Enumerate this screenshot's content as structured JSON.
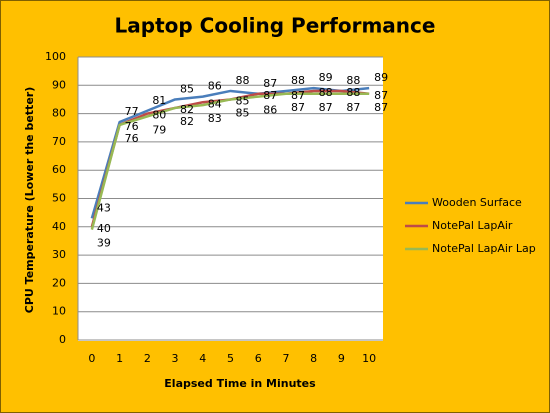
{
  "chart_data": {
    "type": "line",
    "title": "Laptop Cooling Performance",
    "x_label": "Elapsed Time in Minutes",
    "y_label": "CPU Temperature (Lower the better)",
    "categories": [
      "0",
      "1",
      "2",
      "3",
      "4",
      "5",
      "6",
      "7",
      "8",
      "9",
      "10"
    ],
    "series": [
      {
        "name": "Wooden Surface",
        "color": "#4a7ebb",
        "values": [
          43,
          77,
          81,
          85,
          86,
          88,
          87,
          88,
          89,
          88,
          89
        ]
      },
      {
        "name": "NotePal LapAir",
        "color": "#be4b48",
        "values": [
          40,
          76,
          80,
          82,
          84,
          85,
          87,
          87,
          88,
          88,
          87
        ]
      },
      {
        "name": "NotePal LapAir Lap",
        "color": "#98b954",
        "values": [
          39,
          76,
          79,
          82,
          83,
          85,
          86,
          87,
          87,
          87,
          87
        ]
      }
    ],
    "ylim": [
      0,
      100
    ],
    "yticks": [
      0,
      10,
      20,
      30,
      40,
      50,
      60,
      70,
      80,
      90,
      100
    ],
    "grid": true,
    "legend": "right"
  }
}
